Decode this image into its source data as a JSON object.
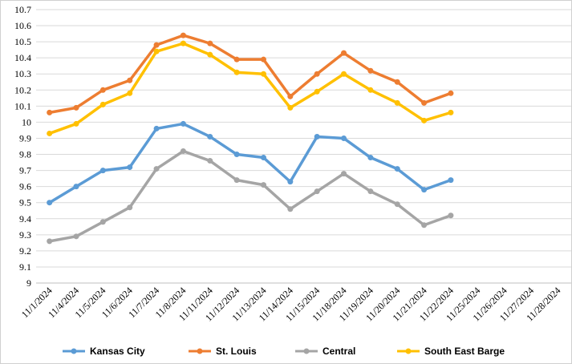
{
  "chart_data": {
    "type": "line",
    "categories": [
      "11/1/2024",
      "11/4/2024",
      "11/5/2024",
      "11/6/2024",
      "11/7/2024",
      "11/8/2024",
      "11/11/2024",
      "11/12/2024",
      "11/13/2024",
      "11/14/2024",
      "11/15/2024",
      "11/18/2024",
      "11/19/2024",
      "11/20/2024",
      "11/21/2024",
      "11/22/2024",
      "11/25/2024",
      "11/26/2024",
      "11/27/2024",
      "11/28/2024"
    ],
    "series": [
      {
        "name": "Kansas City",
        "color": "#5b9bd5",
        "values": [
          9.5,
          9.6,
          9.7,
          9.72,
          9.96,
          9.99,
          9.91,
          9.8,
          9.78,
          9.63,
          9.91,
          9.9,
          9.78,
          9.71,
          9.58,
          9.64,
          null,
          null,
          null,
          null
        ]
      },
      {
        "name": "St. Louis",
        "color": "#ed7d31",
        "values": [
          10.06,
          10.09,
          10.2,
          10.26,
          10.48,
          10.54,
          10.49,
          10.39,
          10.39,
          10.16,
          10.3,
          10.43,
          10.32,
          10.25,
          10.12,
          10.18,
          null,
          null,
          null,
          null
        ]
      },
      {
        "name": "Central",
        "color": "#a5a5a5",
        "values": [
          9.26,
          9.29,
          9.38,
          9.47,
          9.71,
          9.82,
          9.76,
          9.64,
          9.61,
          9.46,
          9.57,
          9.68,
          9.57,
          9.49,
          9.36,
          9.42,
          null,
          null,
          null,
          null
        ]
      },
      {
        "name": "South East Barge",
        "color": "#ffc000",
        "values": [
          9.93,
          9.99,
          10.11,
          10.18,
          10.44,
          10.49,
          10.42,
          10.31,
          10.3,
          10.09,
          10.19,
          10.3,
          10.2,
          10.12,
          10.01,
          10.06,
          null,
          null,
          null,
          null
        ]
      }
    ],
    "ylim": [
      9,
      10.7
    ],
    "yticks": [
      9,
      9.1,
      9.2,
      9.3,
      9.4,
      9.5,
      9.6,
      9.7,
      9.8,
      9.9,
      10,
      10.1,
      10.2,
      10.3,
      10.4,
      10.5,
      10.6,
      10.7
    ],
    "grid": true,
    "legend": "bottom"
  }
}
